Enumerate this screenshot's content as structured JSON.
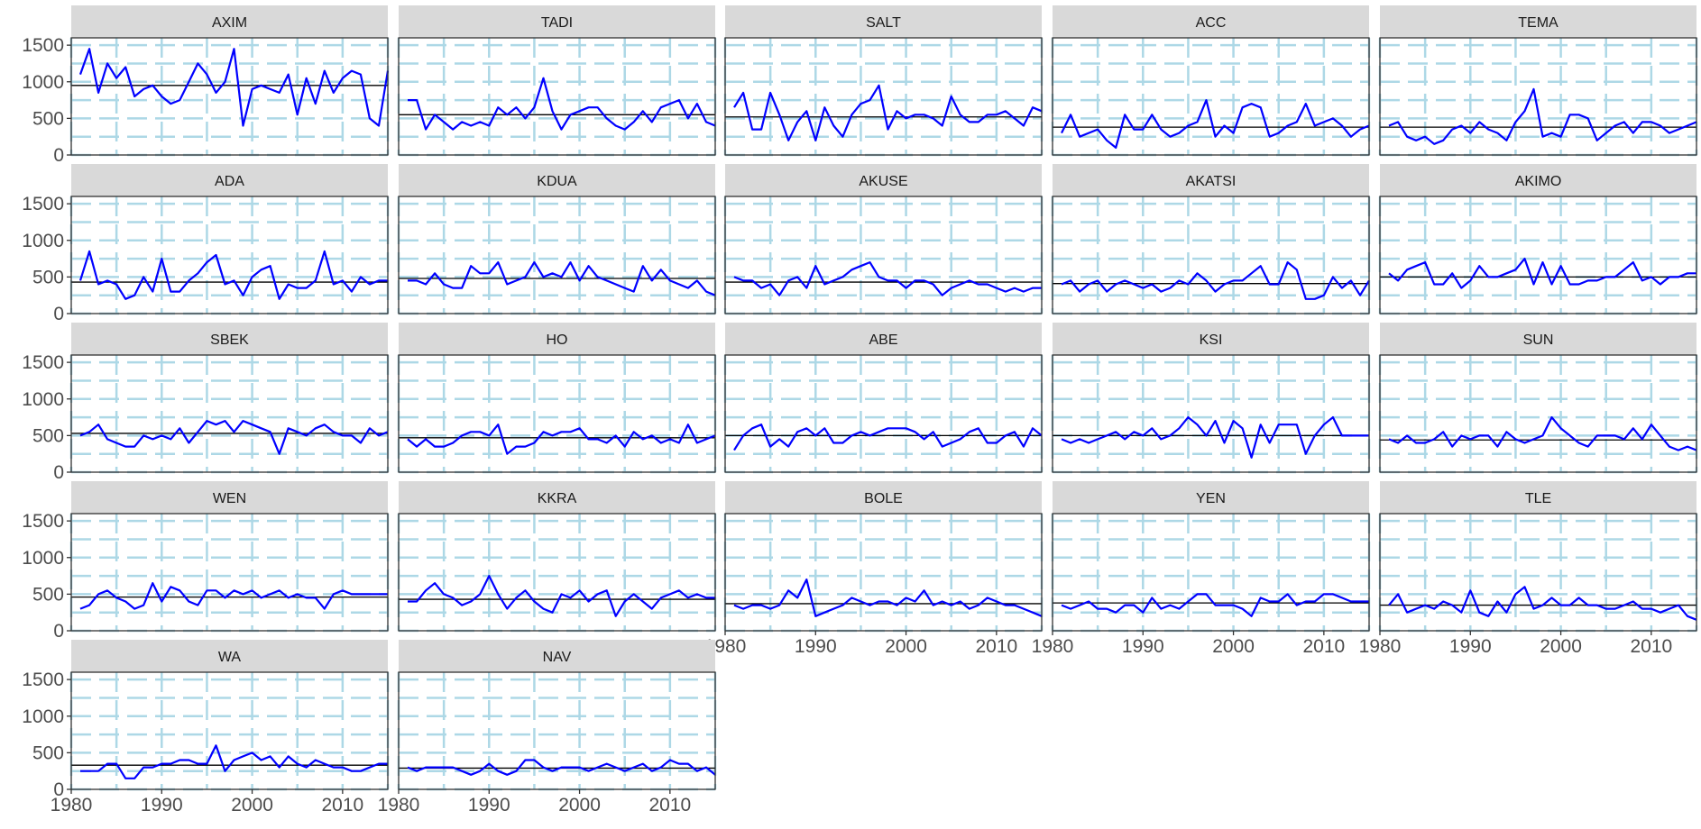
{
  "chart_data": {
    "type": "line",
    "layout": "faceted small multiples, 5 columns x 5 rows, shared axes",
    "x_ticks": [
      1980,
      1990,
      2000,
      2010
    ],
    "y_ticks": [
      0,
      500,
      1000,
      1500
    ],
    "xlim": [
      1980,
      2015
    ],
    "ylim": [
      0,
      1600
    ],
    "grid": "dashed",
    "colors": {
      "series": "#0000ff",
      "mean_line": "#000000",
      "grid": "#add8e6",
      "strip": "#d9d9d9"
    },
    "facets": [
      {
        "name": "AXIM",
        "mean": 950,
        "start_year": 1981,
        "values": [
          1100,
          1450,
          850,
          1250,
          1050,
          1200,
          800,
          900,
          950,
          800,
          700,
          750,
          1000,
          1250,
          1100,
          850,
          1000,
          1450,
          400,
          900,
          950,
          900,
          850,
          1100,
          550,
          1050,
          700,
          1150,
          850,
          1050,
          1150,
          1100,
          500,
          400,
          1150
        ]
      },
      {
        "name": "TADI",
        "mean": 550,
        "start_year": 1981,
        "values": [
          750,
          750,
          350,
          550,
          450,
          350,
          450,
          400,
          450,
          400,
          650,
          550,
          650,
          500,
          650,
          1050,
          600,
          350,
          550,
          600,
          650,
          650,
          500,
          400,
          350,
          450,
          600,
          450,
          650,
          700,
          750,
          500,
          700,
          450,
          400
        ]
      },
      {
        "name": "SALT",
        "mean": 520,
        "start_year": 1981,
        "values": [
          650,
          850,
          350,
          350,
          850,
          550,
          200,
          450,
          600,
          200,
          650,
          400,
          250,
          550,
          700,
          750,
          950,
          350,
          600,
          500,
          550,
          550,
          500,
          400,
          800,
          550,
          450,
          450,
          550,
          550,
          600,
          500,
          400,
          650,
          600
        ]
      },
      {
        "name": "ACC",
        "mean": 380,
        "start_year": 1981,
        "values": [
          300,
          550,
          250,
          300,
          350,
          200,
          100,
          550,
          350,
          350,
          550,
          350,
          250,
          300,
          400,
          450,
          750,
          250,
          400,
          300,
          650,
          700,
          650,
          250,
          300,
          400,
          450,
          700,
          400,
          450,
          500,
          400,
          250,
          350,
          400
        ]
      },
      {
        "name": "TEMA",
        "mean": 380,
        "start_year": 1981,
        "values": [
          400,
          450,
          250,
          200,
          250,
          150,
          200,
          350,
          400,
          300,
          450,
          350,
          300,
          200,
          450,
          600,
          900,
          250,
          300,
          250,
          550,
          550,
          500,
          200,
          300,
          400,
          450,
          300,
          450,
          450,
          400,
          300,
          350,
          400,
          450
        ]
      },
      {
        "name": "ADA",
        "mean": 430,
        "start_year": 1981,
        "values": [
          450,
          850,
          400,
          450,
          400,
          200,
          250,
          500,
          300,
          750,
          300,
          300,
          450,
          550,
          700,
          800,
          400,
          450,
          250,
          500,
          600,
          650,
          200,
          400,
          350,
          350,
          450,
          850,
          400,
          450,
          300,
          500,
          400,
          450,
          450
        ]
      },
      {
        "name": "KDUA",
        "mean": 480,
        "start_year": 1981,
        "values": [
          450,
          450,
          400,
          550,
          400,
          350,
          350,
          650,
          550,
          550,
          700,
          400,
          450,
          500,
          700,
          500,
          550,
          500,
          700,
          450,
          650,
          500,
          450,
          400,
          350,
          300,
          650,
          450,
          600,
          450,
          400,
          350,
          450,
          300,
          250
        ]
      },
      {
        "name": "AKUSE",
        "mean": 430,
        "start_year": 1981,
        "values": [
          500,
          450,
          450,
          350,
          400,
          250,
          450,
          500,
          350,
          650,
          400,
          450,
          500,
          600,
          650,
          700,
          500,
          450,
          450,
          350,
          450,
          450,
          400,
          250,
          350,
          400,
          450,
          400,
          400,
          350,
          300,
          350,
          300,
          350,
          350
        ]
      },
      {
        "name": "AKATSI",
        "mean": 410,
        "start_year": 1981,
        "values": [
          400,
          450,
          300,
          400,
          450,
          300,
          400,
          450,
          400,
          350,
          400,
          300,
          350,
          450,
          400,
          550,
          450,
          300,
          400,
          450,
          450,
          550,
          650,
          400,
          400,
          700,
          600,
          200,
          200,
          250,
          500,
          350,
          450,
          250,
          450
        ]
      },
      {
        "name": "AKIMO",
        "mean": 500,
        "start_year": 1981,
        "values": [
          550,
          450,
          600,
          650,
          700,
          400,
          400,
          550,
          350,
          450,
          650,
          500,
          500,
          550,
          600,
          750,
          400,
          700,
          400,
          650,
          400,
          400,
          450,
          450,
          500,
          500,
          600,
          700,
          450,
          500,
          400,
          500,
          500,
          550,
          550
        ]
      },
      {
        "name": "SBEK",
        "mean": 530,
        "start_year": 1981,
        "values": [
          500,
          550,
          650,
          450,
          400,
          350,
          350,
          500,
          450,
          500,
          450,
          600,
          400,
          550,
          700,
          650,
          700,
          550,
          700,
          650,
          600,
          550,
          250,
          600,
          550,
          500,
          600,
          650,
          550,
          500,
          500,
          400,
          600,
          500,
          550
        ]
      },
      {
        "name": "HO",
        "mean": 470,
        "start_year": 1981,
        "values": [
          450,
          350,
          450,
          350,
          350,
          400,
          500,
          550,
          550,
          500,
          650,
          250,
          350,
          350,
          400,
          550,
          500,
          550,
          550,
          600,
          450,
          450,
          400,
          500,
          350,
          550,
          450,
          500,
          400,
          450,
          400,
          650,
          400,
          450,
          500
        ]
      },
      {
        "name": "ABE",
        "mean": 500,
        "start_year": 1981,
        "values": [
          300,
          500,
          600,
          650,
          350,
          450,
          350,
          550,
          600,
          500,
          600,
          400,
          400,
          500,
          550,
          500,
          550,
          600,
          600,
          600,
          550,
          450,
          550,
          350,
          400,
          450,
          550,
          600,
          400,
          400,
          500,
          550,
          350,
          600,
          500
        ]
      },
      {
        "name": "KSI",
        "mean": 500,
        "start_year": 1981,
        "values": [
          450,
          400,
          450,
          400,
          450,
          500,
          550,
          450,
          550,
          500,
          600,
          450,
          500,
          600,
          750,
          650,
          500,
          700,
          400,
          700,
          600,
          200,
          650,
          400,
          650,
          650,
          650,
          250,
          500,
          650,
          750,
          500,
          500,
          500,
          500
        ]
      },
      {
        "name": "SUN",
        "mean": 440,
        "start_year": 1981,
        "values": [
          450,
          400,
          500,
          400,
          400,
          450,
          550,
          350,
          500,
          450,
          500,
          500,
          350,
          550,
          450,
          400,
          450,
          500,
          750,
          600,
          500,
          400,
          350,
          500,
          500,
          500,
          450,
          600,
          450,
          650,
          500,
          350,
          300,
          350,
          300
        ]
      },
      {
        "name": "WEN",
        "mean": 460,
        "start_year": 1981,
        "values": [
          300,
          350,
          500,
          550,
          450,
          400,
          300,
          350,
          650,
          400,
          600,
          550,
          400,
          350,
          550,
          550,
          450,
          550,
          500,
          550,
          450,
          500,
          550,
          450,
          500,
          450,
          450,
          300,
          500,
          550,
          500,
          500,
          500,
          500,
          500
        ]
      },
      {
        "name": "KKRA",
        "mean": 430,
        "start_year": 1981,
        "values": [
          400,
          400,
          550,
          650,
          500,
          450,
          350,
          400,
          500,
          750,
          500,
          300,
          450,
          550,
          400,
          300,
          250,
          500,
          450,
          550,
          400,
          500,
          550,
          200,
          400,
          500,
          400,
          300,
          450,
          500,
          550,
          450,
          500,
          450,
          450
        ]
      },
      {
        "name": "BOLE",
        "mean": 370,
        "start_year": 1981,
        "values": [
          350,
          300,
          350,
          350,
          300,
          350,
          550,
          450,
          700,
          200,
          250,
          300,
          350,
          450,
          400,
          350,
          400,
          400,
          350,
          450,
          400,
          550,
          350,
          400,
          350,
          400,
          300,
          350,
          450,
          400,
          350,
          350,
          300,
          250,
          200
        ]
      },
      {
        "name": "YEN",
        "mean": 380,
        "start_year": 1981,
        "values": [
          350,
          300,
          350,
          400,
          300,
          300,
          250,
          350,
          350,
          250,
          450,
          300,
          350,
          300,
          400,
          500,
          500,
          350,
          350,
          350,
          300,
          200,
          450,
          400,
          400,
          500,
          350,
          400,
          400,
          500,
          500,
          450,
          400,
          400,
          400
        ]
      },
      {
        "name": "TLE",
        "mean": 350,
        "start_year": 1981,
        "values": [
          350,
          500,
          250,
          300,
          350,
          300,
          400,
          350,
          250,
          550,
          250,
          200,
          400,
          250,
          500,
          600,
          300,
          350,
          450,
          350,
          350,
          450,
          350,
          350,
          300,
          300,
          350,
          400,
          300,
          300,
          250,
          300,
          350,
          200,
          150
        ]
      },
      {
        "name": "WA",
        "mean": 330,
        "start_year": 1981,
        "values": [
          250,
          250,
          250,
          350,
          350,
          150,
          150,
          300,
          300,
          350,
          350,
          400,
          400,
          350,
          350,
          600,
          250,
          400,
          450,
          500,
          400,
          450,
          300,
          450,
          350,
          300,
          400,
          350,
          300,
          300,
          250,
          250,
          300,
          350,
          350
        ]
      },
      {
        "name": "NAV",
        "mean": 290,
        "start_year": 1981,
        "values": [
          300,
          250,
          300,
          300,
          300,
          300,
          250,
          200,
          250,
          350,
          250,
          200,
          250,
          400,
          400,
          300,
          250,
          300,
          300,
          300,
          250,
          300,
          350,
          300,
          250,
          300,
          350,
          250,
          300,
          400,
          350,
          350,
          250,
          300,
          200
        ]
      }
    ]
  }
}
